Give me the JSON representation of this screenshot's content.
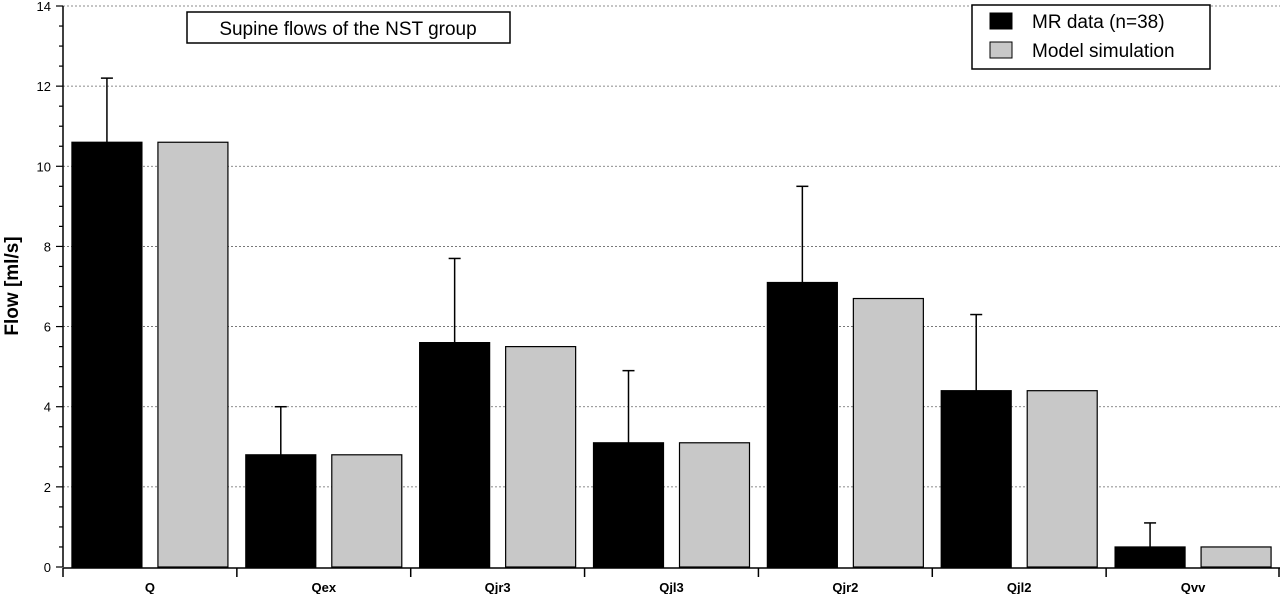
{
  "chart_data": {
    "type": "bar",
    "title": "Supine flows of the NST group",
    "xlabel": "",
    "ylabel": "Flow [ml/s]",
    "ylim": [
      0,
      14
    ],
    "yticks": [
      0,
      2,
      4,
      6,
      8,
      10,
      12,
      14
    ],
    "grid": true,
    "legend_position": "top-right",
    "categories": [
      "Q",
      "Qex",
      "Qjr3",
      "Qjl3",
      "Qjr2",
      "Qjl2",
      "Qvv"
    ],
    "series": [
      {
        "name": "MR data (n=38)",
        "color": "#000000",
        "values": [
          10.6,
          2.8,
          5.6,
          3.1,
          7.1,
          4.4,
          0.5
        ],
        "error_upper": [
          12.2,
          4.0,
          7.7,
          4.9,
          9.5,
          6.3,
          1.1
        ]
      },
      {
        "name": "Model simulation",
        "color": "#c8c8c8",
        "values": [
          10.6,
          2.8,
          5.5,
          3.1,
          6.7,
          4.4,
          0.5
        ]
      }
    ]
  }
}
